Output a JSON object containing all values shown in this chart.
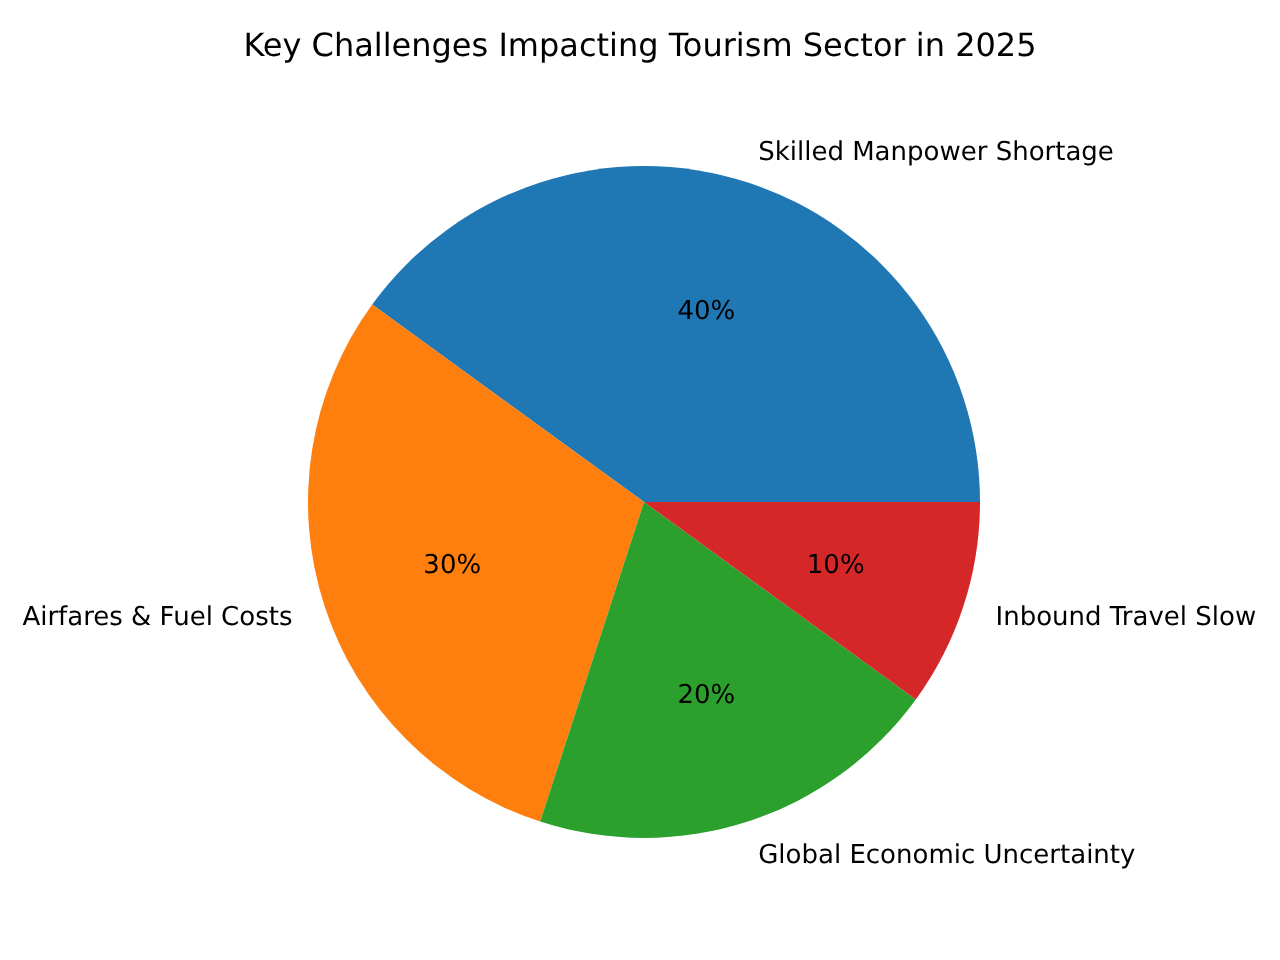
{
  "chart_data": {
    "type": "pie",
    "title": "Key Challenges Impacting Tourism Sector in 2025",
    "categories": [
      "Skilled Manpower Shortage",
      "Airfares & Fuel Costs",
      "Global Economic Uncertainty",
      "Inbound Travel Slow"
    ],
    "values": [
      40,
      30,
      20,
      10
    ],
    "colors": [
      "#1f77b4",
      "#ff7f0e",
      "#2ca02c",
      "#d62728"
    ],
    "value_labels": [
      "40%",
      "30%",
      "20%",
      "10%"
    ]
  }
}
